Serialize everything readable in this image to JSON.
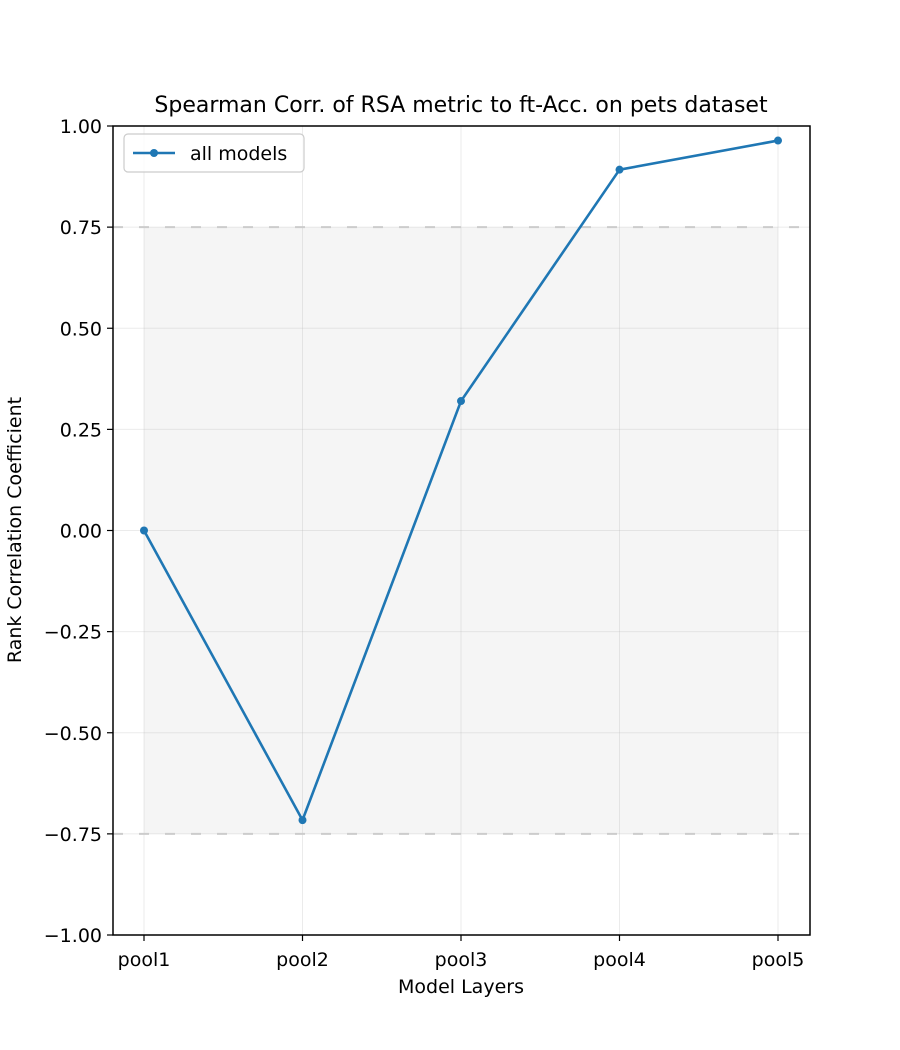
{
  "chart_data": {
    "type": "line",
    "title": "Spearman Corr. of RSA metric to ft-Acc. on pets dataset",
    "xlabel": "Model Layers",
    "ylabel": "Rank Correlation Coefficient",
    "categories": [
      "pool1",
      "pool2",
      "pool3",
      "pool4",
      "pool5"
    ],
    "series": [
      {
        "name": "all models",
        "values": [
          0.0,
          -0.716,
          0.32,
          0.892,
          0.964
        ],
        "color": "#1f77b4"
      }
    ],
    "ylim": [
      -1.0,
      1.0
    ],
    "yticks": [
      -1.0,
      -0.75,
      -0.5,
      -0.25,
      0.0,
      0.25,
      0.5,
      0.75,
      1.0
    ],
    "ytick_labels": [
      "−1.00",
      "−0.75",
      "−0.50",
      "−0.25",
      "0.00",
      "0.25",
      "0.50",
      "0.75",
      "1.00"
    ],
    "shaded_band": {
      "ymin": -0.75,
      "ymax": 0.75,
      "color": "#f5f5f5",
      "border_color": "#cccccc"
    },
    "grid": true,
    "legend_position": "top-left"
  }
}
